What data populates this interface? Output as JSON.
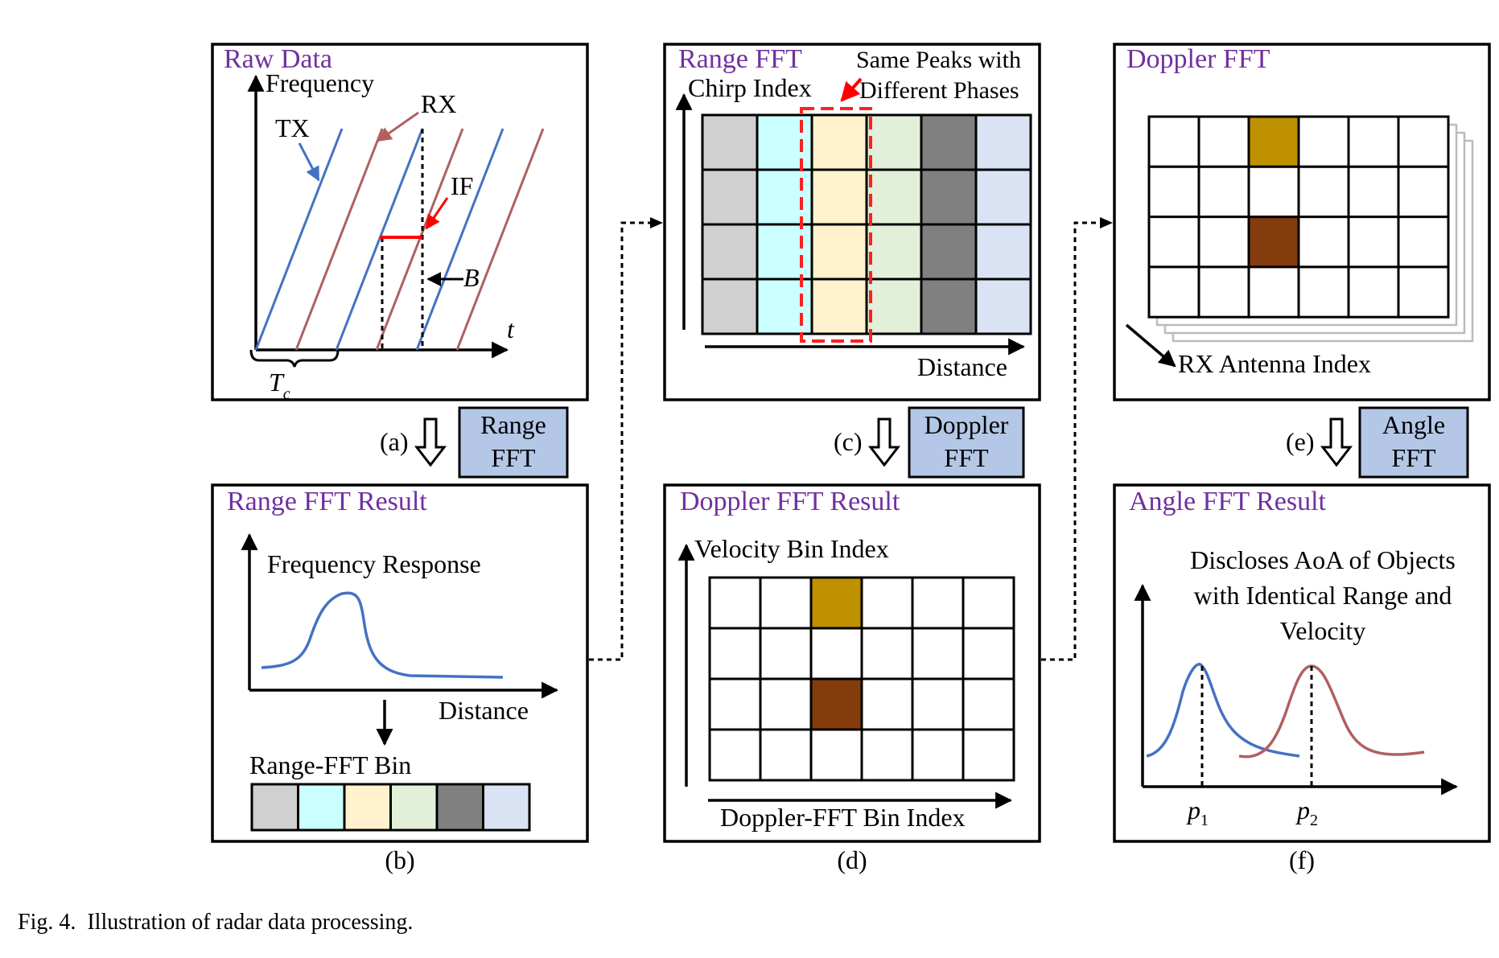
{
  "colors": {
    "title": "#7030a0",
    "tx": "#4472c4",
    "rx": "#b06060",
    "if": "#ff0000",
    "op_box": "#b4c7e7",
    "highlight": "#ff2020",
    "peak_gold": "#bf9000",
    "peak_brown": "#843c0c",
    "bins": [
      "#d0d0d0",
      "#ccffff",
      "#fff2cc",
      "#e2f0d9",
      "#808080",
      "#dae3f3"
    ]
  },
  "panel_a": {
    "title": "Raw Data",
    "y_axis": "Frequency",
    "x_axis": "t",
    "tx": "TX",
    "rx": "RX",
    "if": "IF",
    "b": "B",
    "tc_main": "T",
    "tc_sub": "c"
  },
  "panel_b": {
    "title": "Range FFT Result",
    "curve_label": "Frequency Response",
    "x_axis": "Distance",
    "bin_label": "Range-FFT Bin"
  },
  "panel_c": {
    "title": "Range FFT",
    "y_axis": "Chirp Index",
    "x_axis": "Distance",
    "annotation_line1": "Same Peaks with",
    "annotation_line2": "Different Phases"
  },
  "panel_d": {
    "title": "Doppler FFT Result",
    "y_axis": "Velocity Bin Index",
    "x_axis": "Doppler-FFT Bin Index"
  },
  "panel_e": {
    "title": "Doppler FFT",
    "axis": "RX Antenna Index"
  },
  "panel_f": {
    "title": "Angle FFT Result",
    "text_line1": "Discloses AoA of Objects",
    "text_line2": "with Identical Range and",
    "text_line3": "Velocity",
    "p1_main": "p",
    "p1_sub": "1",
    "p2_main": "p",
    "p2_sub": "2"
  },
  "ops": [
    {
      "id": "a",
      "label": "(a)",
      "line1": "Range",
      "line2": "FFT"
    },
    {
      "id": "c",
      "label": "(c)",
      "line1": "Doppler",
      "line2": "FFT"
    },
    {
      "id": "e",
      "label": "(e)",
      "line1": "Angle",
      "line2": "FFT"
    }
  ],
  "panel_labels": {
    "b": "(b)",
    "d": "(d)",
    "f": "(f)"
  },
  "caption": "Fig. 4.  Illustration of radar data processing."
}
